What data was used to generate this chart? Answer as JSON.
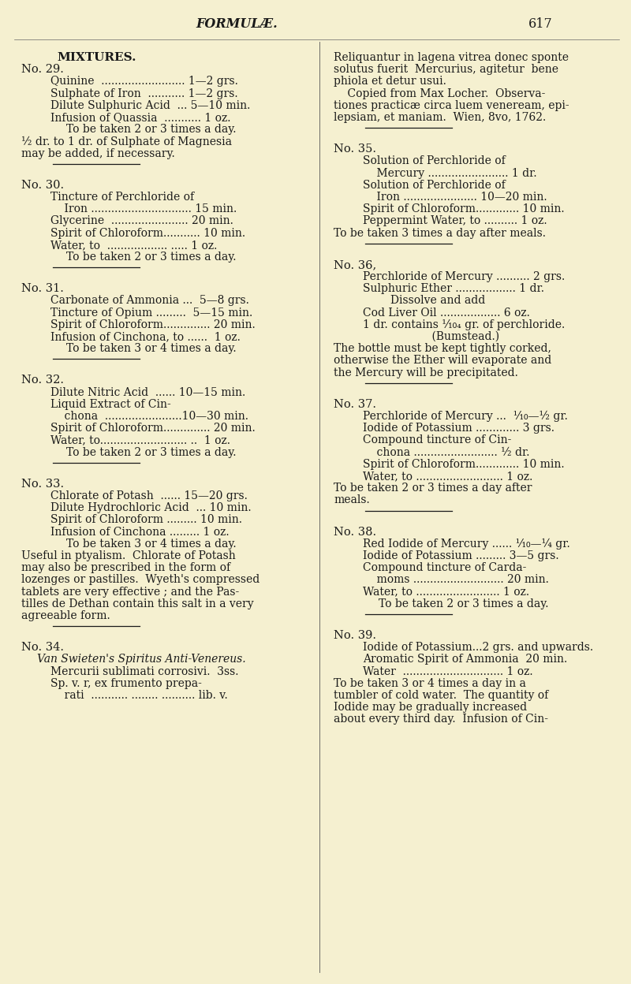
{
  "bg_color": "#f5f0d0",
  "text_color": "#1a1a1a",
  "page_width": 8.0,
  "page_height": 12.48,
  "header_title": "FORMULÆ.",
  "header_page": "617",
  "left_col": [
    {
      "type": "heading",
      "text": "MIXTURES.",
      "bold": true,
      "indent": 0.5,
      "size": 11
    },
    {
      "type": "text",
      "text": "No. 29.",
      "bold": false,
      "indent": 0.05,
      "size": 10.5
    },
    {
      "type": "text",
      "text": "Quinine  ......................... 1—2 grs.",
      "bold": false,
      "indent": 0.42,
      "size": 10
    },
    {
      "type": "text",
      "text": "Sulphate of Iron  ........... 1—2 grs.",
      "bold": false,
      "indent": 0.42,
      "size": 10
    },
    {
      "type": "text",
      "text": "Dilute Sulphuric Acid  ... 5—10 min.",
      "bold": false,
      "indent": 0.42,
      "size": 10
    },
    {
      "type": "text",
      "text": "Infusion of Quassia  ........... 1 oz.",
      "bold": false,
      "indent": 0.42,
      "size": 10
    },
    {
      "type": "text",
      "text": "To be taken 2 or 3 times a day.",
      "bold": false,
      "indent": 0.62,
      "size": 10
    },
    {
      "type": "text",
      "text": "½ dr. to 1 dr. of Sulphate of Magnesia",
      "bold": false,
      "indent": 0.05,
      "size": 10
    },
    {
      "type": "text",
      "text": "may be added, if necessary.",
      "bold": false,
      "indent": 0.05,
      "size": 10
    },
    {
      "type": "rule"
    },
    {
      "type": "text",
      "text": "No. 30.",
      "bold": false,
      "indent": 0.05,
      "size": 10.5
    },
    {
      "type": "text",
      "text": "Tincture of Perchloride of",
      "bold": false,
      "indent": 0.42,
      "size": 10
    },
    {
      "type": "text",
      "text": "    Iron .............................. 15 min.",
      "bold": false,
      "indent": 0.42,
      "size": 10
    },
    {
      "type": "text",
      "text": "Glycerine  ....................... 20 min.",
      "bold": false,
      "indent": 0.42,
      "size": 10
    },
    {
      "type": "text",
      "text": "Spirit of Chloroform........... 10 min.",
      "bold": false,
      "indent": 0.42,
      "size": 10
    },
    {
      "type": "text",
      "text": "Water, to  .................. ..... 1 oz.",
      "bold": false,
      "indent": 0.42,
      "size": 10
    },
    {
      "type": "text",
      "text": "To be taken 2 or 3 times a day.",
      "bold": false,
      "indent": 0.62,
      "size": 10
    },
    {
      "type": "rule"
    },
    {
      "type": "text",
      "text": "No. 31.",
      "bold": false,
      "indent": 0.05,
      "size": 10.5
    },
    {
      "type": "text",
      "text": "Carbonate of Ammonia ...  5—8 grs.",
      "bold": false,
      "indent": 0.42,
      "size": 10
    },
    {
      "type": "text",
      "text": "Tincture of Opium .........  5—15 min.",
      "bold": false,
      "indent": 0.42,
      "size": 10
    },
    {
      "type": "text",
      "text": "Spirit of Chloroform.............. 20 min.",
      "bold": false,
      "indent": 0.42,
      "size": 10
    },
    {
      "type": "text",
      "text": "Infusion of Cinchona, to ......  1 oz.",
      "bold": false,
      "indent": 0.42,
      "size": 10
    },
    {
      "type": "text",
      "text": "To be taken 3 or 4 times a day.",
      "bold": false,
      "indent": 0.62,
      "size": 10
    },
    {
      "type": "rule"
    },
    {
      "type": "text",
      "text": "No. 32.",
      "bold": false,
      "indent": 0.05,
      "size": 10.5
    },
    {
      "type": "text",
      "text": "Dilute Nitric Acid  ...... 10—15 min.",
      "bold": false,
      "indent": 0.42,
      "size": 10
    },
    {
      "type": "text",
      "text": "Liquid Extract of Cin-",
      "bold": false,
      "indent": 0.42,
      "size": 10
    },
    {
      "type": "text",
      "text": "    chona  .......................10—30 min.",
      "bold": false,
      "indent": 0.42,
      "size": 10
    },
    {
      "type": "text",
      "text": "Spirit of Chloroform.............. 20 min.",
      "bold": false,
      "indent": 0.42,
      "size": 10
    },
    {
      "type": "text",
      "text": "Water, to.......................... ..  1 oz.",
      "bold": false,
      "indent": 0.42,
      "size": 10
    },
    {
      "type": "text",
      "text": "To be taken 2 or 3 times a day.",
      "bold": false,
      "indent": 0.62,
      "size": 10
    },
    {
      "type": "rule"
    },
    {
      "type": "text",
      "text": "No. 33.",
      "bold": false,
      "indent": 0.05,
      "size": 10.5
    },
    {
      "type": "text",
      "text": "Chlorate of Potash  ...... 15—20 grs.",
      "bold": false,
      "indent": 0.42,
      "size": 10
    },
    {
      "type": "text",
      "text": "Dilute Hydrochloric Acid  ... 10 min.",
      "bold": false,
      "indent": 0.42,
      "size": 10
    },
    {
      "type": "text",
      "text": "Spirit of Chloroform ......... 10 min.",
      "bold": false,
      "indent": 0.42,
      "size": 10
    },
    {
      "type": "text",
      "text": "Infusion of Cinchona ......... 1 oz.",
      "bold": false,
      "indent": 0.42,
      "size": 10
    },
    {
      "type": "text",
      "text": "To be taken 3 or 4 times a day.",
      "bold": false,
      "indent": 0.62,
      "size": 10
    },
    {
      "type": "text",
      "text": "Useful in ptyalism.  Chlorate of Potash",
      "bold": false,
      "indent": 0.05,
      "size": 10
    },
    {
      "type": "text",
      "text": "may also be prescribed in the form of",
      "bold": false,
      "indent": 0.05,
      "size": 10
    },
    {
      "type": "text",
      "text": "lozenges or pastilles.  Wyeth's compressed",
      "bold": false,
      "indent": 0.05,
      "size": 10
    },
    {
      "type": "text",
      "text": "tablets are very effective ; and the Pas-",
      "bold": false,
      "indent": 0.05,
      "size": 10
    },
    {
      "type": "text",
      "text": "tilles de Dethan contain this salt in a very",
      "bold": false,
      "indent": 0.05,
      "size": 10
    },
    {
      "type": "text",
      "text": "agreeable form.",
      "bold": false,
      "indent": 0.05,
      "size": 10
    },
    {
      "type": "rule"
    },
    {
      "type": "text",
      "text": "No. 34.",
      "bold": false,
      "indent": 0.05,
      "size": 10.5
    },
    {
      "type": "text",
      "text": "Van Swieten's Spiritus Anti-Venereus.",
      "bold": false,
      "indent": 0.25,
      "size": 10,
      "italic": true
    },
    {
      "type": "text",
      "text": "Mercurii sublimati corrosivi.  3ss.",
      "bold": false,
      "indent": 0.42,
      "size": 10
    },
    {
      "type": "text",
      "text": "Sp. v. r, ex frumento prepa-",
      "bold": false,
      "indent": 0.42,
      "size": 10
    },
    {
      "type": "text",
      "text": "    rati  ........... ........ .......... lib. v.",
      "bold": false,
      "indent": 0.42,
      "size": 10
    }
  ],
  "right_col": [
    {
      "type": "text",
      "text": "Reliquantur in lagena vitrea donec sponte",
      "bold": false,
      "indent": 0.05,
      "size": 10
    },
    {
      "type": "text",
      "text": "solutus fuerit  Mercurius, agitetur  bene",
      "bold": false,
      "indent": 0.05,
      "size": 10
    },
    {
      "type": "text",
      "text": "phiola et detur usui.",
      "bold": false,
      "indent": 0.05,
      "size": 10
    },
    {
      "type": "text",
      "text": "    Copied from Max Locher.  Observa-",
      "bold": false,
      "indent": 0.05,
      "size": 10
    },
    {
      "type": "text",
      "text": "tiones practicæ circa luem veneream, epi-",
      "bold": false,
      "indent": 0.05,
      "size": 10
    },
    {
      "type": "text",
      "text": "lepsiam, et maniam.  Wien, 8vo, 1762.",
      "bold": false,
      "indent": 0.05,
      "size": 10
    },
    {
      "type": "rule"
    },
    {
      "type": "text",
      "text": "No. 35.",
      "bold": false,
      "indent": 0.05,
      "size": 10.5
    },
    {
      "type": "text",
      "text": "Solution of Perchloride of",
      "bold": false,
      "indent": 0.42,
      "size": 10
    },
    {
      "type": "text",
      "text": "    Mercury ........................ 1 dr.",
      "bold": false,
      "indent": 0.42,
      "size": 10
    },
    {
      "type": "text",
      "text": "Solution of Perchloride of",
      "bold": false,
      "indent": 0.42,
      "size": 10
    },
    {
      "type": "text",
      "text": "    Iron ...................... 10—20 min.",
      "bold": false,
      "indent": 0.42,
      "size": 10
    },
    {
      "type": "text",
      "text": "Spirit of Chloroform............. 10 min.",
      "bold": false,
      "indent": 0.42,
      "size": 10
    },
    {
      "type": "text",
      "text": "Peppermint Water, to .......... 1 oz.",
      "bold": false,
      "indent": 0.42,
      "size": 10
    },
    {
      "type": "text",
      "text": "To be taken 3 times a day after meals.",
      "bold": false,
      "indent": 0.05,
      "size": 10
    },
    {
      "type": "rule"
    },
    {
      "type": "text",
      "text": "No. 36,",
      "bold": false,
      "indent": 0.05,
      "size": 10.5
    },
    {
      "type": "text",
      "text": "Perchloride of Mercury .......... 2 grs.",
      "bold": false,
      "indent": 0.42,
      "size": 10
    },
    {
      "type": "text",
      "text": "Sulphuric Ether .................. 1 dr.",
      "bold": false,
      "indent": 0.42,
      "size": 10
    },
    {
      "type": "text",
      "text": "        Dissolve and add",
      "bold": false,
      "indent": 0.42,
      "size": 10
    },
    {
      "type": "text",
      "text": "Cod Liver Oil .................. 6 oz.",
      "bold": false,
      "indent": 0.42,
      "size": 10
    },
    {
      "type": "text",
      "text": "1 dr. contains ⅒₄ gr. of perchloride.",
      "bold": false,
      "indent": 0.42,
      "size": 10
    },
    {
      "type": "text",
      "text": "                    (Bumstead.)",
      "bold": false,
      "indent": 0.42,
      "size": 10
    },
    {
      "type": "text",
      "text": "The bottle must be kept tightly corked,",
      "bold": false,
      "indent": 0.05,
      "size": 10
    },
    {
      "type": "text",
      "text": "otherwise the Ether will evaporate and",
      "bold": false,
      "indent": 0.05,
      "size": 10
    },
    {
      "type": "text",
      "text": "the Mercury will be precipitated.",
      "bold": false,
      "indent": 0.05,
      "size": 10
    },
    {
      "type": "rule"
    },
    {
      "type": "text",
      "text": "No. 37.",
      "bold": false,
      "indent": 0.05,
      "size": 10.5
    },
    {
      "type": "text",
      "text": "Perchloride of Mercury ...  ⅒—½ gr.",
      "bold": false,
      "indent": 0.42,
      "size": 10
    },
    {
      "type": "text",
      "text": "Iodide of Potassium ............. 3 grs.",
      "bold": false,
      "indent": 0.42,
      "size": 10
    },
    {
      "type": "text",
      "text": "Compound tincture of Cin-",
      "bold": false,
      "indent": 0.42,
      "size": 10
    },
    {
      "type": "text",
      "text": "    chona ......................... ½ dr.",
      "bold": false,
      "indent": 0.42,
      "size": 10
    },
    {
      "type": "text",
      "text": "Spirit of Chloroform............. 10 min.",
      "bold": false,
      "indent": 0.42,
      "size": 10
    },
    {
      "type": "text",
      "text": "Water, to .......................... 1 oz.",
      "bold": false,
      "indent": 0.42,
      "size": 10
    },
    {
      "type": "text",
      "text": "To be taken 2 or 3 times a day after",
      "bold": false,
      "indent": 0.05,
      "size": 10
    },
    {
      "type": "text",
      "text": "meals.",
      "bold": false,
      "indent": 0.05,
      "size": 10
    },
    {
      "type": "rule"
    },
    {
      "type": "text",
      "text": "No. 38.",
      "bold": false,
      "indent": 0.05,
      "size": 10.5
    },
    {
      "type": "text",
      "text": "Red Iodide of Mercury ...... ⅒—¼ gr.",
      "bold": false,
      "indent": 0.42,
      "size": 10
    },
    {
      "type": "text",
      "text": "Iodide of Potassium ......... 3—5 grs.",
      "bold": false,
      "indent": 0.42,
      "size": 10
    },
    {
      "type": "text",
      "text": "Compound tincture of Carda-",
      "bold": false,
      "indent": 0.42,
      "size": 10
    },
    {
      "type": "text",
      "text": "    moms ........................... 20 min.",
      "bold": false,
      "indent": 0.42,
      "size": 10
    },
    {
      "type": "text",
      "text": "Water, to ......................... 1 oz.",
      "bold": false,
      "indent": 0.42,
      "size": 10
    },
    {
      "type": "text",
      "text": "To be taken 2 or 3 times a day.",
      "bold": false,
      "indent": 0.62,
      "size": 10
    },
    {
      "type": "rule"
    },
    {
      "type": "text",
      "text": "No. 39.",
      "bold": false,
      "indent": 0.05,
      "size": 10.5
    },
    {
      "type": "text",
      "text": "Iodide of Potassium...2 grs. and upwards.",
      "bold": false,
      "indent": 0.42,
      "size": 10
    },
    {
      "type": "text",
      "text": "                                          upwards.",
      "bold": false,
      "indent": 0.42,
      "size": 10,
      "skip": true
    },
    {
      "type": "text",
      "text": "Aromatic Spirit of Ammonia  20 min.",
      "bold": false,
      "indent": 0.42,
      "size": 10
    },
    {
      "type": "text",
      "text": "Water  .............................. 1 oz.",
      "bold": false,
      "indent": 0.42,
      "size": 10
    },
    {
      "type": "text",
      "text": "To be taken 3 or 4 times a day in a",
      "bold": false,
      "indent": 0.05,
      "size": 10
    },
    {
      "type": "text",
      "text": "tumbler of cold water.  The quantity of",
      "bold": false,
      "indent": 0.05,
      "size": 10
    },
    {
      "type": "text",
      "text": "Iodide may be gradually increased",
      "bold": false,
      "indent": 0.05,
      "size": 10
    },
    {
      "type": "text",
      "text": "about every third day.  Infusion of Cin-",
      "bold": false,
      "indent": 0.05,
      "size": 10
    }
  ]
}
